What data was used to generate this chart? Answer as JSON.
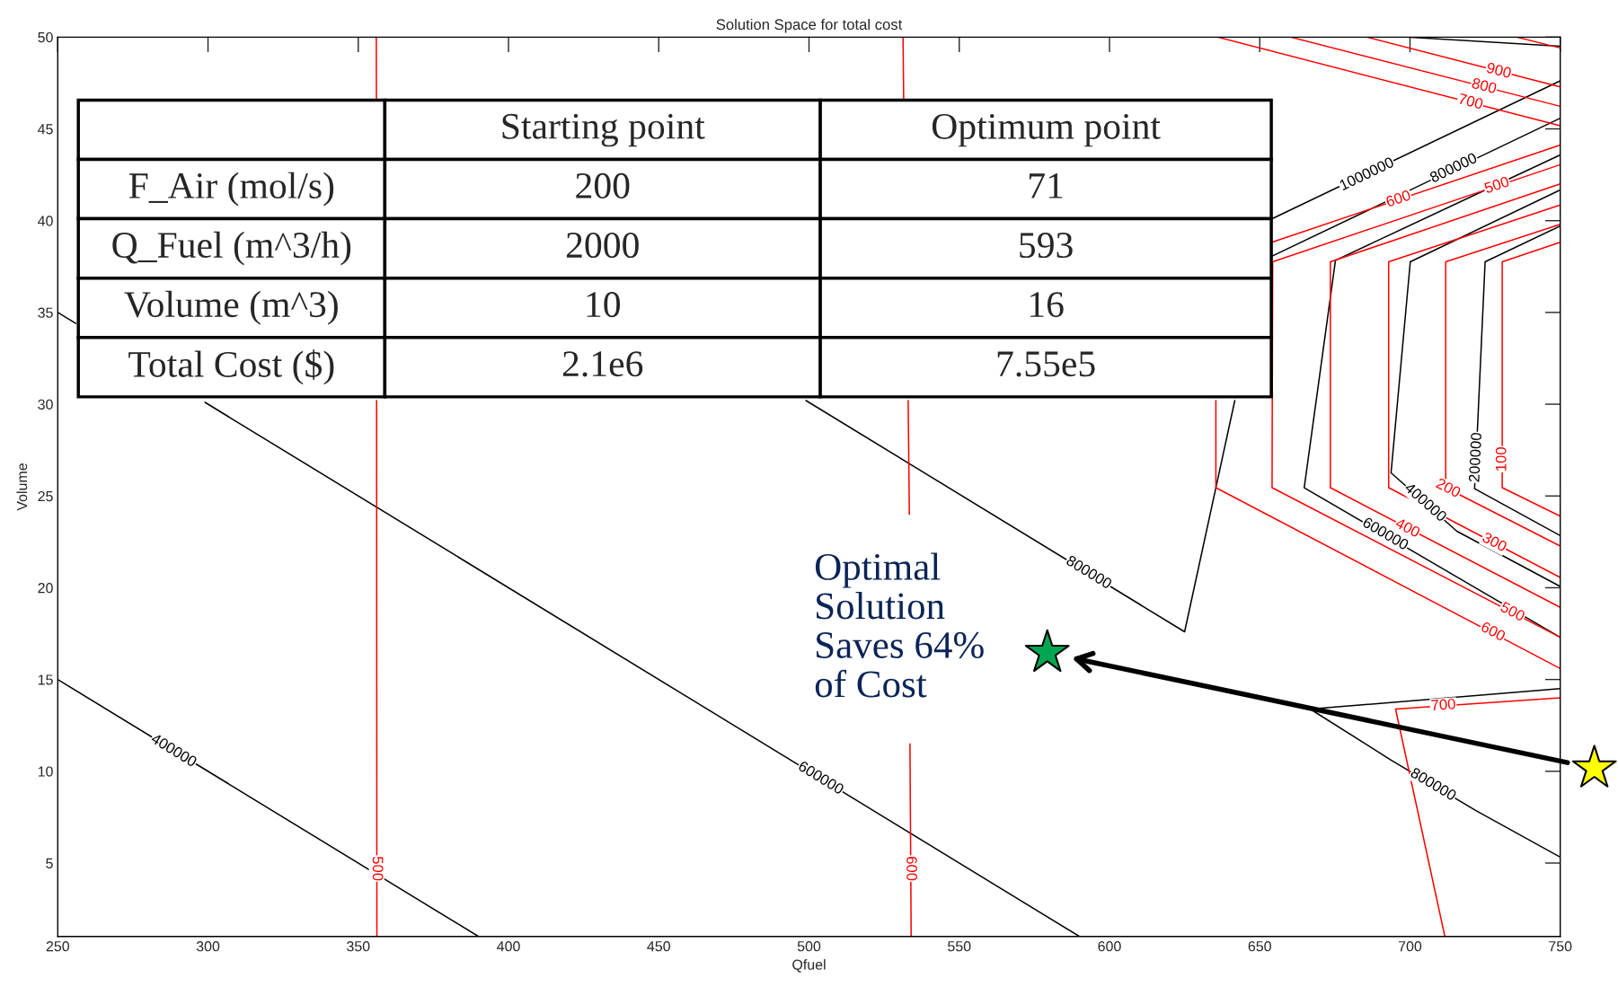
{
  "chart_data": {
    "type": "line",
    "title": "Solution Space for total cost",
    "xlabel": "Qfuel",
    "ylabel": "Volume",
    "xlim": [
      250,
      750
    ],
    "ylim": [
      1,
      50
    ],
    "xticks": [
      250,
      300,
      350,
      400,
      450,
      500,
      550,
      600,
      650,
      700,
      750
    ],
    "yticks": [
      5,
      10,
      15,
      20,
      25,
      30,
      35,
      40,
      45,
      50
    ],
    "series": [
      {
        "color": "#000000",
        "x": [
          250,
          390
        ],
        "values": [
          15,
          1
        ]
      },
      {
        "color": "#000000",
        "x": [
          250,
          256
        ],
        "values": [
          35,
          34.4
        ]
      },
      {
        "color": "#000000",
        "x": [
          299,
          590
        ],
        "values": [
          30.1,
          1
        ]
      },
      {
        "color": "#000000",
        "x": [
          499,
          625,
          641.7
        ],
        "values": [
          30.2,
          17.6,
          30.2
        ]
      },
      {
        "color": "#000000",
        "x": [
          654.3,
          750
        ],
        "values": [
          40.12,
          47.62
        ]
      },
      {
        "color": "#000000",
        "x": [
          654.3,
          750
        ],
        "values": [
          38.08,
          45.58
        ]
      },
      {
        "color": "#000000",
        "x": [
          750,
          675.2,
          664.8,
          750
        ],
        "values": [
          43.58,
          37.84,
          25.45,
          17.3
        ]
      },
      {
        "color": "#000000",
        "x": [
          750,
          700.1,
          693.7,
          715.6,
          750
        ],
        "values": [
          41.67,
          37.76,
          26.26,
          23.08,
          20.07
        ]
      },
      {
        "color": "#000000",
        "x": [
          750,
          725.0,
          722.6,
          721.5,
          750
        ],
        "values": [
          39.71,
          37.76,
          29.2,
          25.4,
          22.84
        ]
      },
      {
        "color": "#000000",
        "x": [
          750,
          666.8,
          693.7,
          722.1,
          750
        ],
        "values": [
          14.5,
          13.39,
          10.61,
          7.84,
          5.32
        ]
      },
      {
        "color": "#000000",
        "x": [
          699.1,
          750
        ],
        "values": [
          50,
          49.5
        ]
      },
      {
        "color": "#ff0000",
        "x": [
          356.0,
          356.05
        ],
        "values": [
          50,
          46.6
        ]
      },
      {
        "color": "#ff0000",
        "x": [
          356.1,
          356.2
        ],
        "values": [
          30.2,
          1
        ]
      },
      {
        "color": "#ff0000",
        "x": [
          531.3,
          531.5
        ],
        "values": [
          50,
          46.6
        ]
      },
      {
        "color": "#ff0000",
        "x": [
          533.0,
          533.4
        ],
        "values": [
          30.2,
          24.0
        ]
      },
      {
        "color": "#ff0000",
        "x": [
          533.6,
          534.0
        ],
        "values": [
          11.5,
          1
        ]
      },
      {
        "color": "#ff0000",
        "x": [
          635.4,
          635.4,
          750
        ],
        "values": [
          30.2,
          25.45,
          15.6
        ]
      },
      {
        "color": "#ff0000",
        "x": [
          654,
          750
        ],
        "values": [
          38.82,
          44.12
        ]
      },
      {
        "color": "#ff0000",
        "x": [
          750,
          654.3,
          654.1,
          750
        ],
        "values": [
          43.05,
          37.76,
          25.45,
          17.3
        ]
      },
      {
        "color": "#ff0000",
        "x": [
          750,
          673.5,
          673.5,
          750
        ],
        "values": [
          42.0,
          37.76,
          25.45,
          18.93
        ]
      },
      {
        "color": "#ff0000",
        "x": [
          750,
          692.9,
          692.9,
          750
        ],
        "values": [
          40.85,
          37.76,
          25.45,
          20.56
        ]
      },
      {
        "color": "#ff0000",
        "x": [
          750,
          711.9,
          711.9,
          750
        ],
        "values": [
          39.8,
          37.76,
          25.45,
          22.27
        ]
      },
      {
        "color": "#ff0000",
        "x": [
          750,
          730.7,
          730.7,
          750
        ],
        "values": [
          38.82,
          37.76,
          25.45,
          23.9
        ]
      },
      {
        "color": "#ff0000",
        "x": [
          711.6,
          695.2,
          750
        ],
        "values": [
          1,
          13.39,
          14.0
        ]
      },
      {
        "color": "#ff0000",
        "x": [
          636,
          750
        ],
        "values": [
          50,
          45.17
        ]
      },
      {
        "color": "#ff0000",
        "x": [
          660.3,
          750
        ],
        "values": [
          50,
          46.23
        ]
      },
      {
        "color": "#ff0000",
        "x": [
          685.7,
          750
        ],
        "values": [
          50,
          47.29
        ]
      },
      {
        "color": "#ff0000",
        "x": [
          735.5,
          750
        ],
        "values": [
          50,
          49.41
        ]
      },
      {
        "type": "scatter",
        "color": "#00a651",
        "marker": "star",
        "x": [
          579.3
        ],
        "values": [
          16.46
        ]
      }
    ],
    "annotations": [
      "Starting point",
      "Optimum point",
      "F_Air (mol/s)",
      "200",
      "71",
      "Q_Fuel (m^3/h)",
      "2000",
      "593",
      "Volume (m^3)",
      "10",
      "16",
      "Total Cost ($)",
      "2.1e6",
      "7.55e5",
      {
        "text": "Optimal\nSolution\nSaves 64%\nof Cost",
        "x": 579.3,
        "y": 16.46
      },
      {
        "text": "400000",
        "x": 288.5,
        "y": 11.1
      },
      {
        "text": "600000",
        "x": 503.8,
        "y": 9.6
      },
      {
        "text": "800000",
        "x": 593,
        "y": 20.8
      },
      {
        "text": "500",
        "x": 356.1,
        "y": 4.7
      },
      {
        "text": "600",
        "x": 533.8,
        "y": 4.7
      },
      {
        "text": "1000000",
        "x": 685.7,
        "y": 42.5
      },
      {
        "text": "800000",
        "x": 714.6,
        "y": 42.83
      },
      {
        "text": "600",
        "x": 696.2,
        "y": 41.15
      },
      {
        "text": "500",
        "x": 729.0,
        "y": 41.89
      },
      {
        "text": "700",
        "x": 720.1,
        "y": 46.44
      },
      {
        "text": "800",
        "x": 724.6,
        "y": 47.29
      },
      {
        "text": "900",
        "x": 729.5,
        "y": 48.13
      },
      {
        "text": "200000",
        "x": 722.1,
        "y": 27.1
      },
      {
        "text": "100",
        "x": 730.7,
        "y": 27.0
      },
      {
        "text": "400000",
        "x": 705,
        "y": 24.62
      },
      {
        "text": "300",
        "x": 728,
        "y": 22.44
      },
      {
        "text": "200",
        "x": 712.6,
        "y": 25.39
      },
      {
        "text": "600000",
        "x": 691.7,
        "y": 22.9
      },
      {
        "text": "400",
        "x": 699.1,
        "y": 23.22
      },
      {
        "text": "500",
        "x": 734.0,
        "y": 18.65
      },
      {
        "text": "600",
        "x": 727.5,
        "y": 17.57
      },
      {
        "text": "700",
        "x": 711.1,
        "y": 13.57
      },
      {
        "text": "800000",
        "x": 707.6,
        "y": 9.25
      }
    ]
  }
}
